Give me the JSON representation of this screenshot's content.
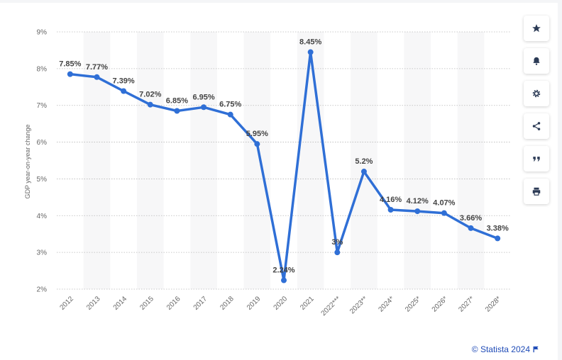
{
  "chart_data": {
    "type": "line",
    "ylabel": "GDP year-on-year change",
    "ylim": [
      2,
      9
    ],
    "yticks": [
      "9%",
      "8%",
      "7%",
      "6%",
      "5%",
      "4%",
      "3%",
      "2%"
    ],
    "yticks_values": [
      9,
      8,
      7,
      6,
      5,
      4,
      3,
      2
    ],
    "categories": [
      "2012",
      "2013",
      "2014",
      "2015",
      "2016",
      "2017",
      "2018",
      "2019",
      "2020",
      "2021",
      "2022***",
      "2023**",
      "2024*",
      "2025*",
      "2026*",
      "2027*",
      "2028*"
    ],
    "values": [
      7.85,
      7.77,
      7.39,
      7.02,
      6.85,
      6.95,
      6.75,
      5.95,
      2.24,
      8.45,
      3,
      5.2,
      4.16,
      4.12,
      4.07,
      3.66,
      3.38
    ],
    "value_labels": [
      "7.85%",
      "7.77%",
      "7.39%",
      "7.02%",
      "6.85%",
      "6.95%",
      "6.75%",
      "5.95%",
      "2.24%",
      "8.45%",
      "3%",
      "5.2%",
      "4.16%",
      "4.12%",
      "4.07%",
      "3.66%",
      "3.38%"
    ],
    "grid": true,
    "alternating_column_bands": true,
    "line_color": "#2f6fd6"
  },
  "toolbar": {
    "buttons": [
      {
        "name": "favorite-button",
        "icon": "star-icon"
      },
      {
        "name": "notification-button",
        "icon": "bell-icon"
      },
      {
        "name": "settings-button",
        "icon": "gear-icon"
      },
      {
        "name": "share-button",
        "icon": "share-icon"
      },
      {
        "name": "cite-button",
        "icon": "quote-icon"
      },
      {
        "name": "print-button",
        "icon": "print-icon"
      }
    ]
  },
  "credit": {
    "text": "© Statista 2024"
  }
}
